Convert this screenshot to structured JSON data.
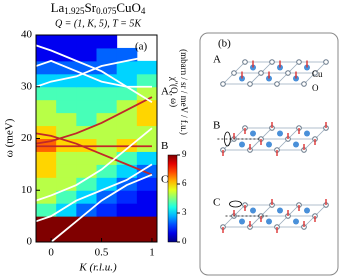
{
  "chart_data": {
    "type": "heatmap",
    "title_parts": [
      "La",
      "1.925",
      "Sr",
      "0.075",
      "CuO",
      "4"
    ],
    "subtitle": "Q = (1, K, 5), T = 5K",
    "panel_label": "(a)",
    "x_label": "K (r.l.u.)",
    "y_label": "ω (meV)",
    "xlim": [
      -0.15,
      1.05
    ],
    "ylim": [
      0,
      40
    ],
    "xticks": [
      0,
      0.5,
      1
    ],
    "yticks": [
      0,
      10,
      20,
      30,
      40
    ],
    "x_edges": [
      -0.15,
      0.05,
      0.25,
      0.45,
      0.65,
      0.85,
      1.05
    ],
    "y_edges": [
      0,
      2.5,
      5,
      7.5,
      10,
      12.5,
      15,
      17.5,
      20,
      22.5,
      25,
      27.5,
      30,
      32.5,
      35,
      37.5,
      40
    ],
    "z": [
      [
        9,
        9,
        9,
        9,
        9,
        9
      ],
      [
        9,
        9,
        9,
        9,
        9,
        9
      ],
      [
        4,
        3,
        2,
        1.5,
        1,
        1
      ],
      [
        5,
        4,
        3,
        2,
        1.5,
        1
      ],
      [
        5,
        5,
        4,
        3,
        2,
        1.5
      ],
      [
        6,
        5,
        5,
        4,
        3,
        2
      ],
      [
        6,
        5,
        5,
        5,
        4,
        3
      ],
      [
        7,
        6,
        6,
        5,
        6,
        5
      ],
      [
        6,
        5,
        5,
        5,
        5,
        5
      ],
      [
        5,
        5,
        4,
        5,
        5,
        6
      ],
      [
        5,
        4,
        4,
        4,
        5,
        6
      ],
      [
        4,
        4,
        4,
        4,
        4,
        5
      ],
      [
        3,
        3,
        3,
        3,
        3,
        4
      ],
      [
        2,
        2,
        2,
        2,
        3,
        3
      ],
      [
        1,
        1,
        1,
        2,
        2,
        null
      ],
      [
        1,
        1,
        1,
        1,
        null,
        null
      ]
    ],
    "clim": [
      0,
      9
    ],
    "cticks": [
      0,
      3,
      6,
      9
    ],
    "colorbar_label": [
      "χ''(Q, ω)",
      "(mbarn / sr / meV / f.u.)"
    ],
    "lines": [
      {
        "color": "#c0282a",
        "x": [
          -0.15,
          0,
          0.25,
          0.5,
          0.75,
          1
        ],
        "values": [
          19,
          19.5,
          21,
          23,
          25.5,
          28
        ]
      },
      {
        "color": "#c0282a",
        "x": [
          -0.15,
          0,
          0.25,
          0.5,
          0.75,
          1
        ],
        "values": [
          18.5,
          18.5,
          18.5,
          18.5,
          18.5,
          18.5
        ]
      },
      {
        "color": "#c0282a",
        "x": [
          -0.15,
          0,
          0.25,
          0.5,
          0.75,
          1
        ],
        "values": [
          21,
          20.5,
          19,
          17,
          15,
          13
        ]
      },
      {
        "color": "#ffffff",
        "x": [
          -0.15,
          0,
          0.25,
          0.5,
          0.75,
          1
        ],
        "values": [
          null,
          0,
          4,
          8,
          11,
          13
        ]
      },
      {
        "color": "#ffffff",
        "x": [
          -0.15,
          0,
          0.25,
          0.5,
          0.75,
          1
        ],
        "values": [
          4,
          5,
          8,
          10,
          12,
          15
        ]
      },
      {
        "color": "#ffffff",
        "x": [
          -0.15,
          0,
          0.25,
          0.5,
          0.75,
          1
        ],
        "values": [
          8,
          9,
          11,
          14,
          18,
          22
        ]
      },
      {
        "color": "#ffffff",
        "x": [
          -0.15,
          0,
          0.25,
          0.5,
          0.75,
          1
        ],
        "values": [
          34,
          35,
          33,
          31,
          30,
          30
        ]
      },
      {
        "color": "#ffffff",
        "x": [
          -0.15,
          0,
          0.25,
          0.5,
          0.75,
          1
        ],
        "values": [
          38,
          37,
          35,
          33,
          30,
          27
        ]
      },
      {
        "color": "#ffffff",
        "x": [
          -0.15,
          0,
          0.25,
          0.5,
          0.75,
          1
        ],
        "values": [
          30,
          31,
          32,
          34,
          35,
          36
        ]
      }
    ],
    "mode_labels": [
      {
        "text": "A",
        "y": 29
      },
      {
        "text": "B",
        "y": 18.5
      },
      {
        "text": "C",
        "y": 12
      }
    ]
  },
  "diagram": {
    "label": "(b)",
    "rows": [
      "A",
      "B",
      "C"
    ],
    "cu_label": "Cu",
    "o_label": "O"
  }
}
